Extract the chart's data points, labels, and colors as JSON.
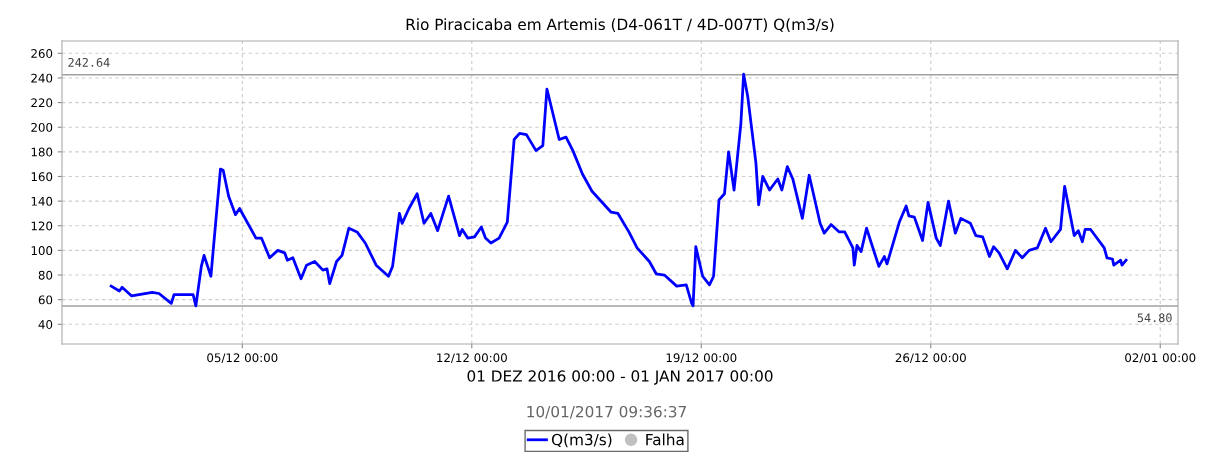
{
  "chart_data": {
    "type": "line",
    "title": "Rio Piracicaba em Artemis (D4-061T / 4D-007T) Q(m3/s)",
    "xlabel": "01 DEZ 2016 00:00 - 01 JAN 2017 00:00",
    "annotations": [
      "10/01/2017 09:36:37"
    ],
    "xlim": [
      "2016-11-29T12:00",
      "2017-01-02T13:00"
    ],
    "xticks": [
      {
        "value": "2016-12-05",
        "label": "05/12 00:00"
      },
      {
        "value": "2016-12-12",
        "label": "12/12 00:00"
      },
      {
        "value": "2016-12-19",
        "label": "19/12 00:00"
      },
      {
        "value": "2016-12-26",
        "label": "26/12 00:00"
      },
      {
        "value": "2017-01-02",
        "label": "02/01 00:00"
      }
    ],
    "ylim": [
      24,
      270
    ],
    "yticks": [
      40,
      60,
      80,
      100,
      120,
      140,
      160,
      180,
      200,
      220,
      240,
      260
    ],
    "grid": true,
    "legend": "bottom",
    "ref_lines": [
      {
        "axis": "y",
        "value": 242.64,
        "label": "242.64",
        "color": "#a0a0a0"
      },
      {
        "axis": "y",
        "value": 54.8,
        "label": "54.80",
        "color": "#a0a0a0"
      }
    ],
    "series": [
      {
        "name": "Q(m3/s)",
        "color": "#0000ff",
        "marker": "none",
        "line_style": "solid",
        "x": [
          "2016-12-01T00:00",
          "2016-12-01T06:00",
          "2016-12-01T08:00",
          "2016-12-01T15:00",
          "2016-12-02T06:00",
          "2016-12-02T11:00",
          "2016-12-02T20:00",
          "2016-12-02T22:00",
          "2016-12-03T12:00",
          "2016-12-03T14:00",
          "2016-12-03T18:00",
          "2016-12-03T20:00",
          "2016-12-04T01:00",
          "2016-12-04T08:00",
          "2016-12-04T10:00",
          "2016-12-04T14:00",
          "2016-12-04T19:00",
          "2016-12-04T22:00",
          "2016-12-05T10:00",
          "2016-12-05T14:00",
          "2016-12-05T20:00",
          "2016-12-06T02:00",
          "2016-12-06T07:00",
          "2016-12-06T09:00",
          "2016-12-06T13:00",
          "2016-12-06T19:00",
          "2016-12-06T23:00",
          "2016-12-07T05:00",
          "2016-12-07T11:00",
          "2016-12-07T14:00",
          "2016-12-07T16:00",
          "2016-12-07T21:00",
          "2016-12-08T01:00",
          "2016-12-08T06:00",
          "2016-12-08T12:00",
          "2016-12-08T18:00",
          "2016-12-09T02:00",
          "2016-12-09T11:00",
          "2016-12-09T14:00",
          "2016-12-09T19:00",
          "2016-12-09T21:00",
          "2016-12-10T02:00",
          "2016-12-10T08:00",
          "2016-12-10T13:00",
          "2016-12-10T18:00",
          "2016-12-10T23:00",
          "2016-12-11T07:00",
          "2016-12-11T15:00",
          "2016-12-11T17:00",
          "2016-12-11T21:00",
          "2016-12-12T02:00",
          "2016-12-12T07:00",
          "2016-12-12T10:00",
          "2016-12-12T14:00",
          "2016-12-12T20:00",
          "2016-12-13T02:00",
          "2016-12-13T07:00",
          "2016-12-13T11:00",
          "2016-12-13T16:00",
          "2016-12-13T23:00",
          "2016-12-14T04:00",
          "2016-12-14T07:00",
          "2016-12-14T16:00",
          "2016-12-14T21:00",
          "2016-12-15T02:00",
          "2016-12-15T09:00",
          "2016-12-15T16:00",
          "2016-12-16T06:00",
          "2016-12-16T11:00",
          "2016-12-16T19:00",
          "2016-12-17T01:00",
          "2016-12-17T10:00",
          "2016-12-17T15:00",
          "2016-12-17T21:00",
          "2016-12-18T06:00",
          "2016-12-18T13:00",
          "2016-12-18T17:00",
          "2016-12-18T18:00",
          "2016-12-18T20:00",
          "2016-12-19T01:00",
          "2016-12-19T06:00",
          "2016-12-19T09:00",
          "2016-12-19T13:00",
          "2016-12-19T17:00",
          "2016-12-19T20:00",
          "2016-12-20T00:00",
          "2016-12-20T05:00",
          "2016-12-20T07:00",
          "2016-12-20T10:00",
          "2016-12-20T16:00",
          "2016-12-20T18:00",
          "2016-12-20T21:00",
          "2016-12-21T02:00",
          "2016-12-21T08:00",
          "2016-12-21T11:00",
          "2016-12-21T15:00",
          "2016-12-21T19:00",
          "2016-12-22T02:00",
          "2016-12-22T07:00",
          "2016-12-22T15:00",
          "2016-12-22T18:00",
          "2016-12-22T23:00",
          "2016-12-23T05:00",
          "2016-12-23T09:00",
          "2016-12-23T15:00",
          "2016-12-23T16:00",
          "2016-12-23T18:00",
          "2016-12-23T21:00",
          "2016-12-24T01:00",
          "2016-12-24T10:00",
          "2016-12-24T14:00",
          "2016-12-24T16:00",
          "2016-12-25T01:00",
          "2016-12-25T06:00",
          "2016-12-25T08:00",
          "2016-12-25T12:00",
          "2016-12-25T18:00",
          "2016-12-25T22:00",
          "2016-12-26T04:00",
          "2016-12-26T07:00",
          "2016-12-26T13:00",
          "2016-12-26T18:00",
          "2016-12-26T22:00",
          "2016-12-27T05:00",
          "2016-12-27T09:00",
          "2016-12-27T14:00",
          "2016-12-27T19:00",
          "2016-12-27T22:00",
          "2016-12-28T02:00",
          "2016-12-28T08:00",
          "2016-12-28T14:00",
          "2016-12-28T19:00",
          "2016-12-29T00:00",
          "2016-12-29T06:00",
          "2016-12-29T12:00",
          "2016-12-29T16:00",
          "2016-12-29T23:00",
          "2016-12-30T02:00",
          "2016-12-30T09:00",
          "2016-12-30T12:00",
          "2016-12-30T15:00",
          "2016-12-30T17:00",
          "2016-12-30T21:00",
          "2016-12-31T07:00",
          "2016-12-31T09:00",
          "2016-12-31T13:00",
          "2016-12-31T14:00",
          "2016-12-31T19:00",
          "2016-12-31T20:00",
          "2016-12-31T23:00"
        ],
        "values": [
          71,
          67,
          70,
          63,
          66,
          65,
          57,
          64,
          64,
          55,
          87,
          96,
          79,
          166,
          165,
          144,
          129,
          134,
          110,
          110,
          94,
          100,
          98,
          92,
          94,
          77,
          88,
          91,
          84,
          85,
          73,
          91,
          96,
          118,
          115,
          106,
          88,
          79,
          87,
          130,
          122,
          134,
          146,
          122,
          130,
          116,
          144,
          112,
          117,
          110,
          111,
          119,
          110,
          106,
          110,
          123,
          190,
          195,
          194,
          181,
          185,
          231,
          190,
          192,
          181,
          162,
          148,
          131,
          130,
          115,
          102,
          91,
          81,
          80,
          71,
          72,
          57,
          55,
          103,
          79,
          72,
          79,
          141,
          146,
          180,
          149,
          203,
          243,
          225,
          171,
          137,
          160,
          149,
          158,
          149,
          168,
          158,
          126,
          161,
          122,
          114,
          121,
          115,
          115,
          102,
          88,
          104,
          99,
          118,
          87,
          95,
          89,
          123,
          136,
          128,
          127,
          108,
          139,
          110,
          104,
          140,
          114,
          126,
          122,
          112,
          111,
          95,
          103,
          98,
          85,
          100,
          94,
          100,
          102,
          118,
          107,
          117,
          152,
          112,
          116,
          107,
          117,
          117,
          102,
          94,
          93,
          88,
          92,
          88,
          92
        ]
      },
      {
        "name": "Falha",
        "type": "scatter",
        "color": "#c0c0c0",
        "marker": "circle"
      }
    ]
  }
}
